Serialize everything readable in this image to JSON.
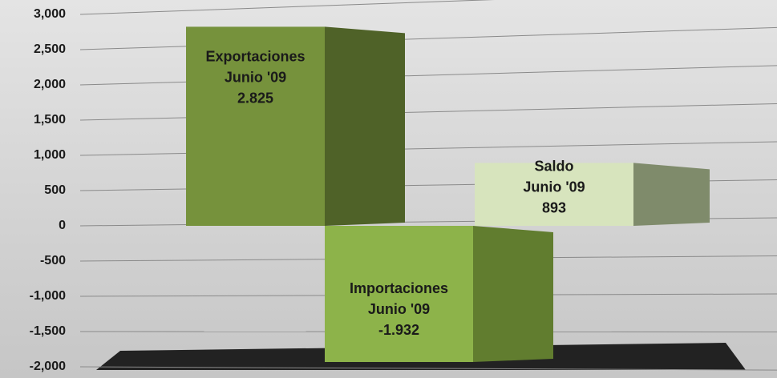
{
  "chart_data": {
    "type": "bar",
    "categories": [
      "Exportaciones",
      "Importaciones",
      "Saldo"
    ],
    "category_sublabels": [
      "Junio '09",
      "Junio '09",
      "Junio '09"
    ],
    "values": [
      2825,
      -1932,
      893
    ],
    "value_labels": [
      "2.825",
      "-1.932",
      "893"
    ],
    "colors": [
      "#76923c",
      "#8db34a",
      "#d7e4bd"
    ],
    "side_colors": [
      "#4f6228",
      "#617d2f",
      "#7f8b6b"
    ],
    "ylim": [
      -2000,
      3000
    ],
    "yticks": [
      {
        "value": -2000,
        "label": "-2,000"
      },
      {
        "value": -1500,
        "label": "-1,500"
      },
      {
        "value": -1000,
        "label": "-1,000"
      },
      -500,
      0,
      500,
      {
        "value": 1000,
        "label": "1,000"
      },
      {
        "value": 1500,
        "label": "1,500"
      },
      {
        "value": 2000,
        "label": "2,000"
      },
      {
        "value": 2500,
        "label": "2,500"
      },
      {
        "value": 3000,
        "label": "3,000"
      }
    ],
    "grid": true
  }
}
